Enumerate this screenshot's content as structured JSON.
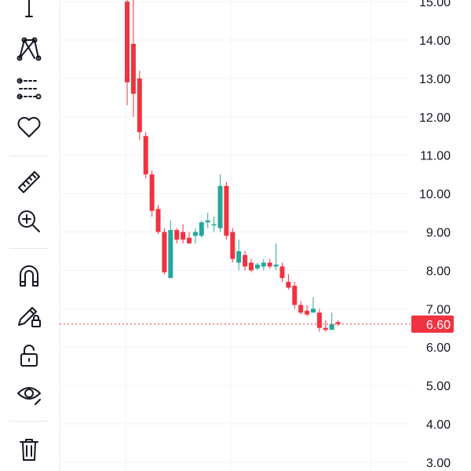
{
  "toolbar": {
    "icons": [
      "text-tool-icon",
      "pattern-tool-icon",
      "fib-tool-icon",
      "favorites-icon",
      "ruler-icon",
      "zoom-in-icon",
      "magnet-icon",
      "lock-drawing-icon",
      "unlock-icon",
      "eye-icon",
      "trash-icon"
    ]
  },
  "colors": {
    "up": "#26a69a",
    "down": "#ef3340",
    "grid": "#f0f3fa",
    "axis_text": "#131722",
    "price_line": "#ef3340"
  },
  "chart_data": {
    "type": "candlestick",
    "y_axis": {
      "ticks": [
        "15.00",
        "14.00",
        "13.00",
        "12.00",
        "11.00",
        "10.00",
        "9.00",
        "8.00",
        "7.00",
        "6.00",
        "5.00",
        "4.00",
        "3.00"
      ],
      "ylim": [
        2.8,
        15.1
      ]
    },
    "current_price": "6.60",
    "candles": [
      {
        "o": 15.0,
        "h": 15.1,
        "l": 12.3,
        "c": 12.9
      },
      {
        "o": 13.9,
        "h": 15.1,
        "l": 12.0,
        "c": 12.6
      },
      {
        "o": 13.0,
        "h": 13.2,
        "l": 11.4,
        "c": 11.6
      },
      {
        "o": 11.5,
        "h": 11.6,
        "l": 10.4,
        "c": 10.5
      },
      {
        "o": 10.5,
        "h": 10.6,
        "l": 9.4,
        "c": 9.55
      },
      {
        "o": 9.6,
        "h": 9.7,
        "l": 8.95,
        "c": 9.0
      },
      {
        "o": 9.0,
        "h": 9.1,
        "l": 7.9,
        "c": 7.95
      },
      {
        "o": 7.8,
        "h": 9.3,
        "l": 7.8,
        "c": 9.05
      },
      {
        "o": 9.05,
        "h": 9.1,
        "l": 8.7,
        "c": 8.8
      },
      {
        "o": 9.0,
        "h": 9.2,
        "l": 8.7,
        "c": 8.8
      },
      {
        "o": 8.85,
        "h": 9.0,
        "l": 8.7,
        "c": 8.7
      },
      {
        "o": 8.9,
        "h": 9.1,
        "l": 8.7,
        "c": 9.0
      },
      {
        "o": 8.9,
        "h": 9.3,
        "l": 8.85,
        "c": 9.25
      },
      {
        "o": 9.25,
        "h": 9.5,
        "l": 9.1,
        "c": 9.3
      },
      {
        "o": 9.2,
        "h": 9.4,
        "l": 9.0,
        "c": 9.2
      },
      {
        "o": 9.1,
        "h": 10.5,
        "l": 9.0,
        "c": 10.2
      },
      {
        "o": 10.2,
        "h": 10.3,
        "l": 8.8,
        "c": 8.9
      },
      {
        "o": 9.0,
        "h": 9.1,
        "l": 8.2,
        "c": 8.3
      },
      {
        "o": 8.2,
        "h": 8.8,
        "l": 8.0,
        "c": 8.5
      },
      {
        "o": 8.4,
        "h": 8.5,
        "l": 8.0,
        "c": 8.1
      },
      {
        "o": 8.2,
        "h": 8.3,
        "l": 7.95,
        "c": 8.0
      },
      {
        "o": 8.05,
        "h": 8.2,
        "l": 8.0,
        "c": 8.15
      },
      {
        "o": 8.1,
        "h": 8.3,
        "l": 8.0,
        "c": 8.2
      },
      {
        "o": 8.2,
        "h": 8.3,
        "l": 8.05,
        "c": 8.1
      },
      {
        "o": 8.1,
        "h": 8.7,
        "l": 8.0,
        "c": 8.15
      },
      {
        "o": 8.1,
        "h": 8.2,
        "l": 7.7,
        "c": 7.8
      },
      {
        "o": 7.7,
        "h": 7.9,
        "l": 7.5,
        "c": 7.55
      },
      {
        "o": 7.6,
        "h": 7.7,
        "l": 7.0,
        "c": 7.1
      },
      {
        "o": 7.1,
        "h": 7.2,
        "l": 6.85,
        "c": 6.9
      },
      {
        "o": 6.95,
        "h": 7.1,
        "l": 6.8,
        "c": 6.85
      },
      {
        "o": 6.9,
        "h": 7.3,
        "l": 6.9,
        "c": 7.0
      },
      {
        "o": 6.9,
        "h": 7.0,
        "l": 6.4,
        "c": 6.5
      },
      {
        "o": 6.5,
        "h": 6.7,
        "l": 6.4,
        "c": 6.45
      },
      {
        "o": 6.45,
        "h": 6.9,
        "l": 6.45,
        "c": 6.6
      },
      {
        "o": 6.65,
        "h": 6.7,
        "l": 6.55,
        "c": 6.6
      }
    ]
  }
}
